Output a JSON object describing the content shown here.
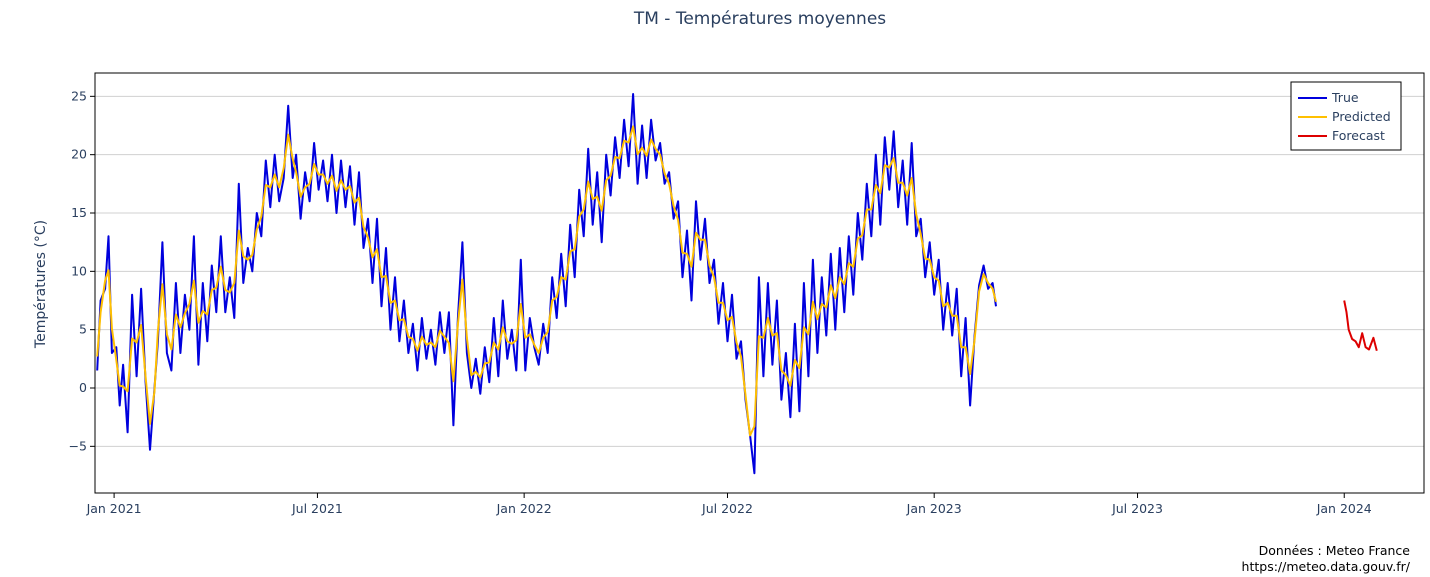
{
  "chart_data": {
    "type": "line",
    "title": "TM - Températures moyennes",
    "ylabel": "Températures (°C)",
    "xlabel": "",
    "xlim": [
      "2020-12-15",
      "2024-03-12"
    ],
    "ylim": [
      -9,
      27
    ],
    "grid": true,
    "legend_position": "top-right",
    "x_ticks": [
      {
        "date": "2021-01-01",
        "label": "Jan 2021"
      },
      {
        "date": "2021-07-01",
        "label": "Jul 2021"
      },
      {
        "date": "2022-01-01",
        "label": "Jan 2022"
      },
      {
        "date": "2022-07-01",
        "label": "Jul 2022"
      },
      {
        "date": "2023-01-01",
        "label": "Jan 2023"
      },
      {
        "date": "2023-07-01",
        "label": "Jul 2023"
      },
      {
        "date": "2024-01-01",
        "label": "Jan 2024"
      }
    ],
    "y_ticks": [
      -5,
      0,
      5,
      10,
      15,
      20,
      25
    ],
    "series": [
      {
        "name": "True",
        "color": "#0000dd",
        "points": [
          [
            "2020-12-17",
            1.5
          ],
          [
            "2020-12-20",
            7.5
          ],
          [
            "2020-12-24",
            8.5
          ],
          [
            "2020-12-27",
            13.0
          ],
          [
            "2020-12-30",
            3.0
          ],
          [
            "2021-01-03",
            3.5
          ],
          [
            "2021-01-06",
            -1.5
          ],
          [
            "2021-01-09",
            2.0
          ],
          [
            "2021-01-13",
            -3.8
          ],
          [
            "2021-01-17",
            8.0
          ],
          [
            "2021-01-21",
            1.0
          ],
          [
            "2021-01-25",
            8.5
          ],
          [
            "2021-01-29",
            0.5
          ],
          [
            "2021-02-02",
            -5.3
          ],
          [
            "2021-02-06",
            0.0
          ],
          [
            "2021-02-09",
            4.0
          ],
          [
            "2021-02-13",
            12.5
          ],
          [
            "2021-02-17",
            3.0
          ],
          [
            "2021-02-21",
            1.5
          ],
          [
            "2021-02-25",
            9.0
          ],
          [
            "2021-03-01",
            3.0
          ],
          [
            "2021-03-05",
            8.0
          ],
          [
            "2021-03-09",
            5.0
          ],
          [
            "2021-03-13",
            13.0
          ],
          [
            "2021-03-17",
            2.0
          ],
          [
            "2021-03-21",
            9.0
          ],
          [
            "2021-03-25",
            4.0
          ],
          [
            "2021-03-29",
            10.5
          ],
          [
            "2021-04-02",
            6.5
          ],
          [
            "2021-04-06",
            13.0
          ],
          [
            "2021-04-10",
            6.5
          ],
          [
            "2021-04-14",
            9.5
          ],
          [
            "2021-04-18",
            6.0
          ],
          [
            "2021-04-22",
            17.5
          ],
          [
            "2021-04-26",
            9.0
          ],
          [
            "2021-04-30",
            12.0
          ],
          [
            "2021-05-04",
            10.0
          ],
          [
            "2021-05-08",
            15.0
          ],
          [
            "2021-05-12",
            13.0
          ],
          [
            "2021-05-16",
            19.5
          ],
          [
            "2021-05-20",
            15.5
          ],
          [
            "2021-05-24",
            20.0
          ],
          [
            "2021-05-28",
            16.0
          ],
          [
            "2021-06-01",
            18.0
          ],
          [
            "2021-06-05",
            24.2
          ],
          [
            "2021-06-09",
            18.0
          ],
          [
            "2021-06-12",
            20.0
          ],
          [
            "2021-06-16",
            14.5
          ],
          [
            "2021-06-20",
            18.5
          ],
          [
            "2021-06-24",
            16.0
          ],
          [
            "2021-06-28",
            21.0
          ],
          [
            "2021-07-02",
            17.0
          ],
          [
            "2021-07-06",
            19.5
          ],
          [
            "2021-07-10",
            16.0
          ],
          [
            "2021-07-14",
            20.0
          ],
          [
            "2021-07-18",
            15.0
          ],
          [
            "2021-07-22",
            19.5
          ],
          [
            "2021-07-26",
            15.5
          ],
          [
            "2021-07-30",
            19.0
          ],
          [
            "2021-08-03",
            14.0
          ],
          [
            "2021-08-07",
            18.5
          ],
          [
            "2021-08-11",
            12.0
          ],
          [
            "2021-08-15",
            14.5
          ],
          [
            "2021-08-19",
            9.0
          ],
          [
            "2021-08-23",
            14.5
          ],
          [
            "2021-08-27",
            7.0
          ],
          [
            "2021-08-31",
            12.0
          ],
          [
            "2021-09-04",
            5.0
          ],
          [
            "2021-09-08",
            9.5
          ],
          [
            "2021-09-12",
            4.0
          ],
          [
            "2021-09-16",
            7.5
          ],
          [
            "2021-09-20",
            3.0
          ],
          [
            "2021-09-24",
            5.5
          ],
          [
            "2021-09-28",
            1.5
          ],
          [
            "2021-10-02",
            6.0
          ],
          [
            "2021-10-06",
            2.5
          ],
          [
            "2021-10-10",
            5.0
          ],
          [
            "2021-10-14",
            2.0
          ],
          [
            "2021-10-18",
            6.5
          ],
          [
            "2021-10-22",
            3.0
          ],
          [
            "2021-10-26",
            6.5
          ],
          [
            "2021-10-30",
            -3.2
          ],
          [
            "2021-11-03",
            6.0
          ],
          [
            "2021-11-07",
            12.5
          ],
          [
            "2021-11-11",
            3.0
          ],
          [
            "2021-11-15",
            0.0
          ],
          [
            "2021-11-19",
            2.5
          ],
          [
            "2021-11-23",
            -0.5
          ],
          [
            "2021-11-27",
            3.5
          ],
          [
            "2021-12-01",
            0.5
          ],
          [
            "2021-12-05",
            6.0
          ],
          [
            "2021-12-09",
            1.0
          ],
          [
            "2021-12-13",
            7.5
          ],
          [
            "2021-12-17",
            2.5
          ],
          [
            "2021-12-21",
            5.0
          ],
          [
            "2021-12-25",
            1.5
          ],
          [
            "2021-12-29",
            11.0
          ],
          [
            "2022-01-02",
            1.5
          ],
          [
            "2022-01-06",
            6.0
          ],
          [
            "2022-01-10",
            3.5
          ],
          [
            "2022-01-14",
            2.0
          ],
          [
            "2022-01-18",
            5.5
          ],
          [
            "2022-01-22",
            3.0
          ],
          [
            "2022-01-26",
            9.5
          ],
          [
            "2022-01-30",
            6.0
          ],
          [
            "2022-02-03",
            11.5
          ],
          [
            "2022-02-07",
            7.0
          ],
          [
            "2022-02-11",
            14.0
          ],
          [
            "2022-02-15",
            9.5
          ],
          [
            "2022-02-19",
            17.0
          ],
          [
            "2022-02-23",
            13.0
          ],
          [
            "2022-02-27",
            20.5
          ],
          [
            "2022-03-03",
            14.0
          ],
          [
            "2022-03-07",
            18.5
          ],
          [
            "2022-03-11",
            12.5
          ],
          [
            "2022-03-15",
            20.0
          ],
          [
            "2022-03-19",
            16.5
          ],
          [
            "2022-03-23",
            21.5
          ],
          [
            "2022-03-27",
            18.0
          ],
          [
            "2022-03-31",
            23.0
          ],
          [
            "2022-04-04",
            19.0
          ],
          [
            "2022-04-08",
            25.2
          ],
          [
            "2022-04-12",
            17.5
          ],
          [
            "2022-04-16",
            22.5
          ],
          [
            "2022-04-20",
            18.0
          ],
          [
            "2022-04-24",
            23.0
          ],
          [
            "2022-04-28",
            19.5
          ],
          [
            "2022-05-02",
            21.0
          ],
          [
            "2022-05-06",
            17.5
          ],
          [
            "2022-05-10",
            18.5
          ],
          [
            "2022-05-14",
            14.5
          ],
          [
            "2022-05-18",
            16.0
          ],
          [
            "2022-05-22",
            9.5
          ],
          [
            "2022-05-26",
            13.5
          ],
          [
            "2022-05-30",
            7.5
          ],
          [
            "2022-06-03",
            16.0
          ],
          [
            "2022-06-07",
            11.0
          ],
          [
            "2022-06-11",
            14.5
          ],
          [
            "2022-06-15",
            9.0
          ],
          [
            "2022-06-19",
            11.0
          ],
          [
            "2022-06-23",
            5.5
          ],
          [
            "2022-06-27",
            9.0
          ],
          [
            "2022-07-01",
            4.0
          ],
          [
            "2022-07-05",
            8.0
          ],
          [
            "2022-07-09",
            2.5
          ],
          [
            "2022-07-13",
            4.0
          ],
          [
            "2022-07-17",
            -1.0
          ],
          [
            "2022-07-21",
            -4.0
          ],
          [
            "2022-07-25",
            -7.3
          ],
          [
            "2022-07-29",
            9.5
          ],
          [
            "2022-08-02",
            1.0
          ],
          [
            "2022-08-06",
            9.0
          ],
          [
            "2022-08-10",
            2.0
          ],
          [
            "2022-08-14",
            7.5
          ],
          [
            "2022-08-18",
            -1.0
          ],
          [
            "2022-08-22",
            3.0
          ],
          [
            "2022-08-26",
            -2.5
          ],
          [
            "2022-08-30",
            5.5
          ],
          [
            "2022-09-03",
            -2.0
          ],
          [
            "2022-09-07",
            9.0
          ],
          [
            "2022-09-11",
            1.0
          ],
          [
            "2022-09-15",
            11.0
          ],
          [
            "2022-09-19",
            3.0
          ],
          [
            "2022-09-23",
            9.5
          ],
          [
            "2022-09-27",
            4.5
          ],
          [
            "2022-10-01",
            11.5
          ],
          [
            "2022-10-05",
            5.0
          ],
          [
            "2022-10-09",
            12.0
          ],
          [
            "2022-10-13",
            6.5
          ],
          [
            "2022-10-17",
            13.0
          ],
          [
            "2022-10-21",
            8.0
          ],
          [
            "2022-10-25",
            15.0
          ],
          [
            "2022-10-29",
            11.0
          ],
          [
            "2022-11-02",
            17.5
          ],
          [
            "2022-11-06",
            13.0
          ],
          [
            "2022-11-10",
            20.0
          ],
          [
            "2022-11-14",
            14.0
          ],
          [
            "2022-11-18",
            21.5
          ],
          [
            "2022-11-22",
            17.0
          ],
          [
            "2022-11-26",
            22.0
          ],
          [
            "2022-11-30",
            15.5
          ],
          [
            "2022-12-04",
            19.5
          ],
          [
            "2022-12-08",
            14.0
          ],
          [
            "2022-12-12",
            21.0
          ],
          [
            "2022-12-16",
            13.0
          ],
          [
            "2022-12-20",
            14.5
          ],
          [
            "2022-12-24",
            9.5
          ],
          [
            "2022-12-28",
            12.5
          ],
          [
            "2023-01-01",
            8.0
          ],
          [
            "2023-01-05",
            11.0
          ],
          [
            "2023-01-09",
            5.0
          ],
          [
            "2023-01-13",
            9.0
          ],
          [
            "2023-01-17",
            4.5
          ],
          [
            "2023-01-21",
            8.5
          ],
          [
            "2023-01-25",
            1.0
          ],
          [
            "2023-01-29",
            6.0
          ],
          [
            "2023-02-02",
            -1.5
          ],
          [
            "2023-02-06",
            4.5
          ],
          [
            "2023-02-10",
            8.8
          ],
          [
            "2023-02-14",
            10.5
          ],
          [
            "2023-02-18",
            8.5
          ],
          [
            "2023-02-22",
            9.0
          ],
          [
            "2023-02-25",
            7.0
          ]
        ]
      },
      {
        "name": "Predicted",
        "color": "#ffc000",
        "points": []
      },
      {
        "name": "Forecast",
        "color": "#dd0000",
        "points": [
          [
            "2024-01-01",
            7.5
          ],
          [
            "2024-01-03",
            6.5
          ],
          [
            "2024-01-05",
            5.0
          ],
          [
            "2024-01-08",
            4.2
          ],
          [
            "2024-01-11",
            4.0
          ],
          [
            "2024-01-14",
            3.5
          ],
          [
            "2024-01-17",
            4.7
          ],
          [
            "2024-01-20",
            3.5
          ],
          [
            "2024-01-23",
            3.3
          ],
          [
            "2024-01-27",
            4.3
          ],
          [
            "2024-01-30",
            3.2
          ]
        ]
      }
    ]
  },
  "source": {
    "line1": "Données : Meteo France",
    "line2": "https://meteo.data.gouv.fr/"
  }
}
